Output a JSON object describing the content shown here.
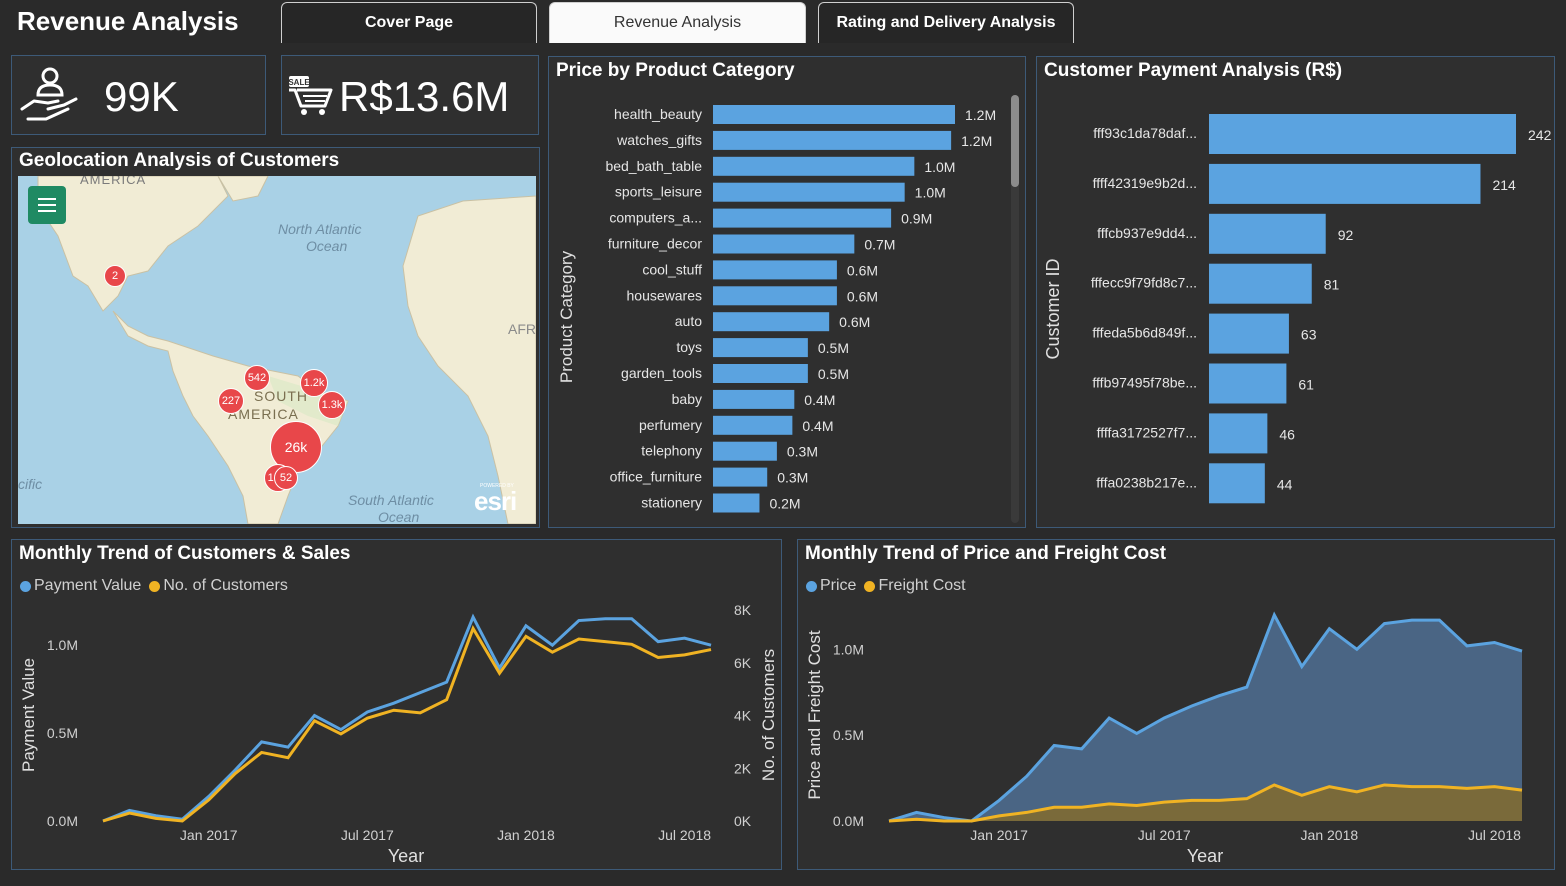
{
  "header": {
    "title": "Revenue Analysis",
    "tabs": [
      {
        "label": "Cover Page",
        "active": false
      },
      {
        "label": "Revenue Analysis",
        "active": true
      },
      {
        "label": "Rating and Delivery Analysis",
        "active": false
      }
    ]
  },
  "kpis": {
    "customers": {
      "value": "99K",
      "icon": "customer-hand-icon"
    },
    "sales": {
      "value": "R$13.6M",
      "icon": "sale-cart-icon"
    }
  },
  "map": {
    "title": "Geolocation Analysis of Customers",
    "labels": {
      "north_atlantic": "North Atlantic",
      "ocean1": "Ocean",
      "south_america1": "SOUTH",
      "south_america2": "AMERICA",
      "south_atlantic": "South Atlantic",
      "ocean2": "Ocean",
      "pacific": "cific",
      "africa": "AFR",
      "america_top": "AMERICA",
      "esri_small": "POWERED BY",
      "esri": "esri"
    },
    "bubbles": [
      "2",
      "542",
      "1.2k",
      "227",
      "1.3k",
      "26k",
      "1.5k",
      "52"
    ]
  },
  "price_by_category": {
    "title": "Price by Product Category",
    "axis_label": "Product Category",
    "categories": [
      "health_beauty",
      "watches_gifts",
      "bed_bath_table",
      "sports_leisure",
      "computers_a...",
      "furniture_decor",
      "cool_stuff",
      "housewares",
      "auto",
      "toys",
      "garden_tools",
      "baby",
      "perfumery",
      "telephony",
      "office_furniture",
      "stationery"
    ],
    "values": [
      1.25,
      1.23,
      1.04,
      0.99,
      0.92,
      0.73,
      0.64,
      0.64,
      0.6,
      0.49,
      0.49,
      0.42,
      0.41,
      0.33,
      0.28,
      0.24
    ],
    "labels": [
      "1.2M",
      "1.2M",
      "1.0M",
      "1.0M",
      "0.9M",
      "0.7M",
      "0.6M",
      "0.6M",
      "0.6M",
      "0.5M",
      "0.5M",
      "0.4M",
      "0.4M",
      "0.3M",
      "0.3M",
      "0.2M"
    ],
    "color": "#5ba3e0"
  },
  "payment_analysis": {
    "title": "Customer Payment Analysis (R$)",
    "axis_label": "Customer ID",
    "ids": [
      "fff93c1da78daf...",
      "ffff42319e9b2d...",
      "fffcb937e9dd4...",
      "fffecc9f79fd8c7...",
      "fffeda5b6d849f...",
      "fffb97495f78be...",
      "ffffa3172527f7...",
      "fffa0238b217e..."
    ],
    "values": [
      242,
      214,
      92,
      81,
      63,
      61,
      46,
      44
    ],
    "color": "#5ba3e0"
  },
  "trend_customers_sales": {
    "title": "Monthly Trend of Customers & Sales",
    "legend": [
      "Payment Value",
      "No. of Customers"
    ],
    "colors": [
      "#5ba3e0",
      "#f0b323"
    ],
    "xlabel": "Year",
    "ylabel_left": "Payment Value",
    "ylabel_right": "No. of Customers",
    "left_ticks": [
      "0.0M",
      "0.5M",
      "1.0M"
    ],
    "right_ticks": [
      "0K",
      "2K",
      "4K",
      "6K",
      "8K"
    ],
    "x_ticks": [
      "Jan 2017",
      "Jul 2017",
      "Jan 2018",
      "Jul 2018"
    ]
  },
  "trend_price_freight": {
    "title": "Monthly Trend of Price and Freight Cost",
    "legend": [
      "Price",
      "Freight Cost"
    ],
    "colors": [
      "#5ba3e0",
      "#f0b323"
    ],
    "xlabel": "Year",
    "ylabel": "Price and Freight Cost",
    "y_ticks": [
      "0.0M",
      "0.5M",
      "1.0M"
    ],
    "x_ticks": [
      "Jan 2017",
      "Jul 2017",
      "Jan 2018",
      "Jul 2018"
    ]
  },
  "chart_data": [
    {
      "type": "bar",
      "title": "Price by Product Category",
      "ylabel": "Product Category",
      "categories": [
        "health_beauty",
        "watches_gifts",
        "bed_bath_table",
        "sports_leisure",
        "computers_a...",
        "furniture_decor",
        "cool_stuff",
        "housewares",
        "auto",
        "toys",
        "garden_tools",
        "baby",
        "perfumery",
        "telephony",
        "office_furniture",
        "stationery"
      ],
      "values": [
        1.25,
        1.23,
        1.04,
        0.99,
        0.92,
        0.73,
        0.64,
        0.64,
        0.6,
        0.49,
        0.49,
        0.42,
        0.41,
        0.33,
        0.28,
        0.24
      ]
    },
    {
      "type": "bar",
      "title": "Customer Payment Analysis (R$)",
      "ylabel": "Customer ID",
      "categories": [
        "fff93c1da78daf...",
        "ffff42319e9b2d...",
        "fffcb937e9dd4...",
        "fffecc9f79fd8c7...",
        "fffeda5b6d849f...",
        "fffb97495f78be...",
        "ffffa3172527f7...",
        "fffa0238b217e..."
      ],
      "values": [
        242,
        214,
        92,
        81,
        63,
        61,
        46,
        44
      ]
    },
    {
      "type": "line",
      "title": "Monthly Trend of Customers & Sales",
      "xlabel": "Year",
      "x": [
        "2016-09",
        "2016-10",
        "2016-11",
        "2016-12",
        "2017-01",
        "2017-02",
        "2017-03",
        "2017-04",
        "2017-05",
        "2017-06",
        "2017-07",
        "2017-08",
        "2017-09",
        "2017-10",
        "2017-11",
        "2017-12",
        "2018-01",
        "2018-02",
        "2018-03",
        "2018-04",
        "2018-05",
        "2018-06",
        "2018-07",
        "2018-08"
      ],
      "series": [
        {
          "name": "Payment Value",
          "axis": "left",
          "ylim": [
            0,
            1.2
          ],
          "values": [
            0.0,
            0.06,
            0.03,
            0.01,
            0.14,
            0.29,
            0.45,
            0.42,
            0.6,
            0.52,
            0.62,
            0.67,
            0.73,
            0.79,
            1.16,
            0.87,
            1.11,
            1.0,
            1.14,
            1.15,
            1.15,
            1.02,
            1.04,
            1.0
          ]
        },
        {
          "name": "No. of Customers",
          "axis": "right",
          "ylim": [
            0,
            8
          ],
          "values": [
            0.0,
            0.3,
            0.1,
            0.0,
            0.8,
            1.8,
            2.6,
            2.4,
            3.8,
            3.3,
            3.9,
            4.2,
            4.1,
            4.6,
            7.3,
            5.6,
            7.0,
            6.4,
            6.9,
            6.8,
            6.7,
            6.2,
            6.3,
            6.5
          ]
        }
      ]
    },
    {
      "type": "area",
      "title": "Monthly Trend of Price and Freight Cost",
      "xlabel": "Year",
      "ylabel": "Price and Freight Cost",
      "ylim": [
        0,
        1.2
      ],
      "x": [
        "2016-09",
        "2016-10",
        "2016-11",
        "2016-12",
        "2017-01",
        "2017-02",
        "2017-03",
        "2017-04",
        "2017-05",
        "2017-06",
        "2017-07",
        "2017-08",
        "2017-09",
        "2017-10",
        "2017-11",
        "2017-12",
        "2018-01",
        "2018-02",
        "2018-03",
        "2018-04",
        "2018-05",
        "2018-06",
        "2018-07",
        "2018-08"
      ],
      "series": [
        {
          "name": "Price",
          "values": [
            0.0,
            0.05,
            0.02,
            0.0,
            0.12,
            0.26,
            0.44,
            0.42,
            0.6,
            0.51,
            0.6,
            0.67,
            0.73,
            0.78,
            1.2,
            0.9,
            1.12,
            1.0,
            1.15,
            1.17,
            1.17,
            1.02,
            1.04,
            0.99
          ]
        },
        {
          "name": "Freight Cost",
          "values": [
            0.0,
            0.01,
            0.0,
            0.0,
            0.03,
            0.05,
            0.08,
            0.08,
            0.1,
            0.09,
            0.11,
            0.12,
            0.12,
            0.13,
            0.21,
            0.15,
            0.2,
            0.17,
            0.21,
            0.2,
            0.2,
            0.19,
            0.2,
            0.18
          ]
        }
      ]
    }
  ]
}
